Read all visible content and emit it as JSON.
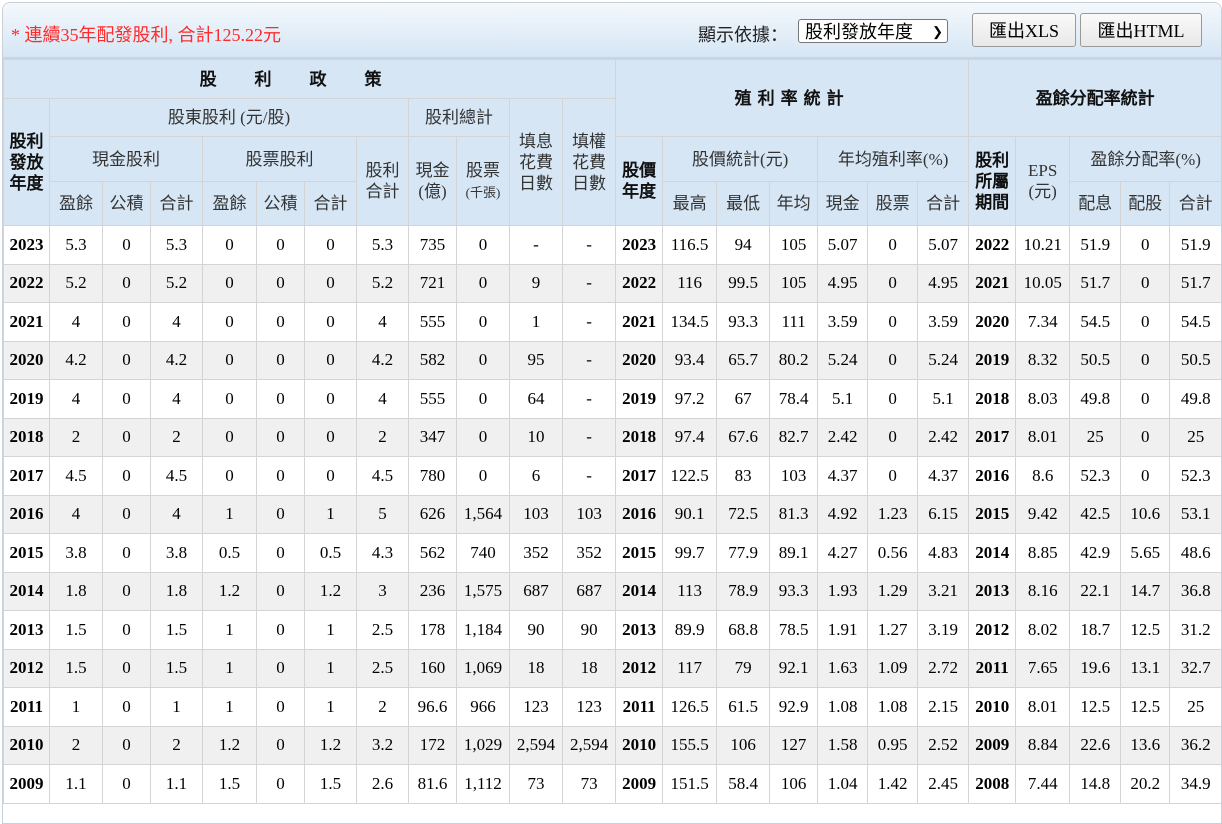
{
  "topbar": {
    "notice": "* 連續35年配發股利, 合計125.22元",
    "display_by_label": "顯示依據：",
    "display_by_value": "股利發放年度",
    "export_xls": "匯出XLS",
    "export_html": "匯出HTML"
  },
  "headers": {
    "policy": "股利政策",
    "yield_stats": "殖利率統計",
    "payout_stats": "盈餘分配率統計",
    "payout_year": "股利\n發放\n年度",
    "shareholder_div": "股東股利 (元/股)",
    "div_total": "股利總計",
    "fill_div_days": "填息\n花費\n日數",
    "fill_right_days": "填權\n花費\n日數",
    "cash_div": "現金股利",
    "stock_div": "股票股利",
    "div_sum": "股利\n合計",
    "cash_total": "現金\n(億)",
    "stock_total": "股票",
    "stock_total_unit": "(千張)",
    "price_year": "股價\n年度",
    "price_stats": "股價統計(元)",
    "avg_yield": "年均殖利率(%)",
    "div_period": "股利\n所屬\n期間",
    "eps": "EPS\n(元)",
    "payout_ratio": "盈餘分配率(%)",
    "earnings": "盈餘",
    "reserve": "公積",
    "sum": "合計",
    "high": "最高",
    "low": "最低",
    "avg": "年均",
    "cash": "現金",
    "stock": "股票",
    "div_pay": "配息",
    "stock_pay": "配股"
  },
  "rows": [
    [
      "2023",
      "5.3",
      "0",
      "5.3",
      "0",
      "0",
      "0",
      "5.3",
      "735",
      "0",
      "-",
      "-",
      "2023",
      "116.5",
      "94",
      "105",
      "5.07",
      "0",
      "5.07",
      "2022",
      "10.21",
      "51.9",
      "0",
      "51.9"
    ],
    [
      "2022",
      "5.2",
      "0",
      "5.2",
      "0",
      "0",
      "0",
      "5.2",
      "721",
      "0",
      "9",
      "-",
      "2022",
      "116",
      "99.5",
      "105",
      "4.95",
      "0",
      "4.95",
      "2021",
      "10.05",
      "51.7",
      "0",
      "51.7"
    ],
    [
      "2021",
      "4",
      "0",
      "4",
      "0",
      "0",
      "0",
      "4",
      "555",
      "0",
      "1",
      "-",
      "2021",
      "134.5",
      "93.3",
      "111",
      "3.59",
      "0",
      "3.59",
      "2020",
      "7.34",
      "54.5",
      "0",
      "54.5"
    ],
    [
      "2020",
      "4.2",
      "0",
      "4.2",
      "0",
      "0",
      "0",
      "4.2",
      "582",
      "0",
      "95",
      "-",
      "2020",
      "93.4",
      "65.7",
      "80.2",
      "5.24",
      "0",
      "5.24",
      "2019",
      "8.32",
      "50.5",
      "0",
      "50.5"
    ],
    [
      "2019",
      "4",
      "0",
      "4",
      "0",
      "0",
      "0",
      "4",
      "555",
      "0",
      "64",
      "-",
      "2019",
      "97.2",
      "67",
      "78.4",
      "5.1",
      "0",
      "5.1",
      "2018",
      "8.03",
      "49.8",
      "0",
      "49.8"
    ],
    [
      "2018",
      "2",
      "0",
      "2",
      "0",
      "0",
      "0",
      "2",
      "347",
      "0",
      "10",
      "-",
      "2018",
      "97.4",
      "67.6",
      "82.7",
      "2.42",
      "0",
      "2.42",
      "2017",
      "8.01",
      "25",
      "0",
      "25"
    ],
    [
      "2017",
      "4.5",
      "0",
      "4.5",
      "0",
      "0",
      "0",
      "4.5",
      "780",
      "0",
      "6",
      "-",
      "2017",
      "122.5",
      "83",
      "103",
      "4.37",
      "0",
      "4.37",
      "2016",
      "8.6",
      "52.3",
      "0",
      "52.3"
    ],
    [
      "2016",
      "4",
      "0",
      "4",
      "1",
      "0",
      "1",
      "5",
      "626",
      "1,564",
      "103",
      "103",
      "2016",
      "90.1",
      "72.5",
      "81.3",
      "4.92",
      "1.23",
      "6.15",
      "2015",
      "9.42",
      "42.5",
      "10.6",
      "53.1"
    ],
    [
      "2015",
      "3.8",
      "0",
      "3.8",
      "0.5",
      "0",
      "0.5",
      "4.3",
      "562",
      "740",
      "352",
      "352",
      "2015",
      "99.7",
      "77.9",
      "89.1",
      "4.27",
      "0.56",
      "4.83",
      "2014",
      "8.85",
      "42.9",
      "5.65",
      "48.6"
    ],
    [
      "2014",
      "1.8",
      "0",
      "1.8",
      "1.2",
      "0",
      "1.2",
      "3",
      "236",
      "1,575",
      "687",
      "687",
      "2014",
      "113",
      "78.9",
      "93.3",
      "1.93",
      "1.29",
      "3.21",
      "2013",
      "8.16",
      "22.1",
      "14.7",
      "36.8"
    ],
    [
      "2013",
      "1.5",
      "0",
      "1.5",
      "1",
      "0",
      "1",
      "2.5",
      "178",
      "1,184",
      "90",
      "90",
      "2013",
      "89.9",
      "68.8",
      "78.5",
      "1.91",
      "1.27",
      "3.19",
      "2012",
      "8.02",
      "18.7",
      "12.5",
      "31.2"
    ],
    [
      "2012",
      "1.5",
      "0",
      "1.5",
      "1",
      "0",
      "1",
      "2.5",
      "160",
      "1,069",
      "18",
      "18",
      "2012",
      "117",
      "79",
      "92.1",
      "1.63",
      "1.09",
      "2.72",
      "2011",
      "7.65",
      "19.6",
      "13.1",
      "32.7"
    ],
    [
      "2011",
      "1",
      "0",
      "1",
      "1",
      "0",
      "1",
      "2",
      "96.6",
      "966",
      "123",
      "123",
      "2011",
      "126.5",
      "61.5",
      "92.9",
      "1.08",
      "1.08",
      "2.15",
      "2010",
      "8.01",
      "12.5",
      "12.5",
      "25"
    ],
    [
      "2010",
      "2",
      "0",
      "2",
      "1.2",
      "0",
      "1.2",
      "3.2",
      "172",
      "1,029",
      "2,594",
      "2,594",
      "2010",
      "155.5",
      "106",
      "127",
      "1.58",
      "0.95",
      "2.52",
      "2009",
      "8.84",
      "22.6",
      "13.6",
      "36.2"
    ],
    [
      "2009",
      "1.1",
      "0",
      "1.1",
      "1.5",
      "0",
      "1.5",
      "2.6",
      "81.6",
      "1,112",
      "73",
      "73",
      "2009",
      "151.5",
      "58.4",
      "106",
      "1.04",
      "1.42",
      "2.45",
      "2008",
      "7.44",
      "14.8",
      "20.2",
      "34.9"
    ]
  ]
}
